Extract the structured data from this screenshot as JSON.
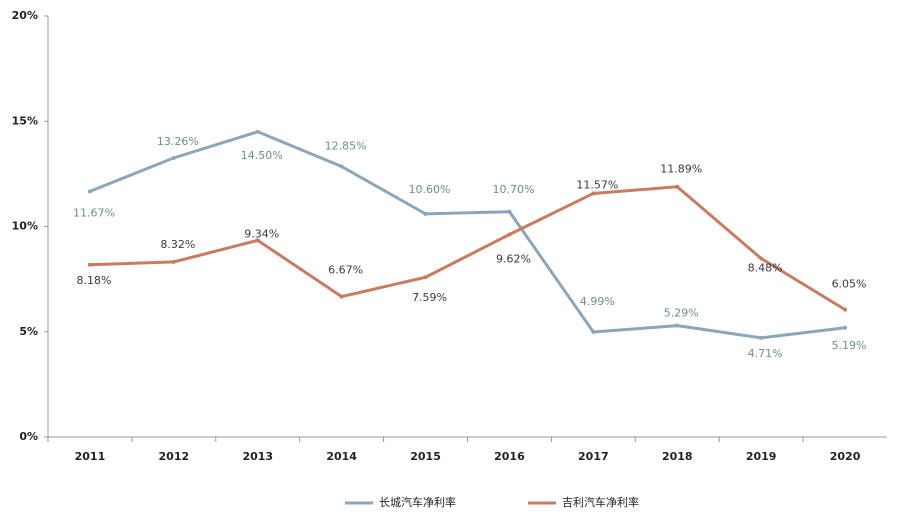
{
  "chart_data": {
    "type": "line",
    "categories": [
      "2011",
      "2012",
      "2013",
      "2014",
      "2015",
      "2016",
      "2017",
      "2018",
      "2019",
      "2020"
    ],
    "series": [
      {
        "name": "长城汽车净利率",
        "color": "#8ca6b9",
        "label_color": "#6d8f86",
        "values": [
          11.67,
          13.26,
          14.5,
          12.85,
          10.6,
          10.7,
          4.99,
          5.29,
          4.71,
          5.19
        ],
        "value_labels": [
          "11.67%",
          "13.26%",
          "14.50%",
          "12.85%",
          "10.60%",
          "10.70%",
          "4.99%",
          "5.29%",
          "4.71%",
          "5.19%"
        ]
      },
      {
        "name": "吉利汽车净利率",
        "color": "#c97b62",
        "label_color": "#3a3a3a",
        "values": [
          8.18,
          8.32,
          9.34,
          6.67,
          7.59,
          9.62,
          11.57,
          11.89,
          8.48,
          6.05
        ],
        "value_labels": [
          "8.18%",
          "8.32%",
          "9.34%",
          "6.67%",
          "7.59%",
          "9.62%",
          "11.57%",
          "11.89%",
          "8.48%",
          "6.05%"
        ]
      }
    ],
    "ylim": [
      0,
      20
    ],
    "yticks": [
      {
        "value": 0,
        "label": "0%"
      },
      {
        "value": 5,
        "label": "5%"
      },
      {
        "value": 10,
        "label": "10%"
      },
      {
        "value": 15,
        "label": "15%"
      },
      {
        "value": 20,
        "label": "20%"
      }
    ],
    "grid": false,
    "legend": "bottom"
  }
}
